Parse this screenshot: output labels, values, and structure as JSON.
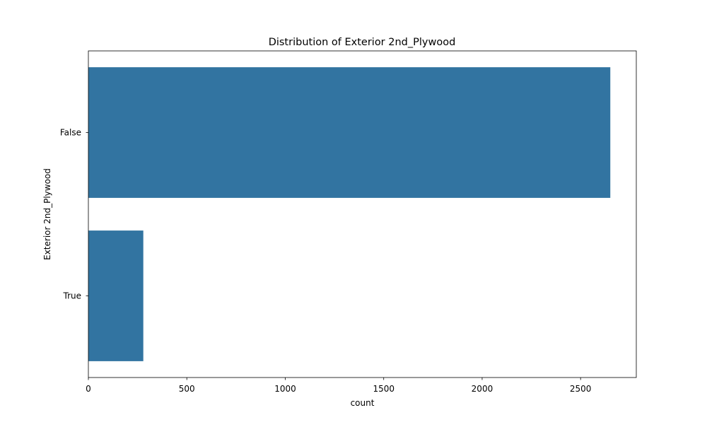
{
  "chart_data": {
    "type": "bar",
    "orientation": "horizontal",
    "title": "Distribution of Exterior 2nd_Plywood",
    "xlabel": "count",
    "ylabel": "Exterior 2nd_Plywood",
    "categories": [
      "False",
      "True"
    ],
    "values": [
      2651,
      279
    ],
    "xlim": [
      0,
      2783
    ],
    "xticks": [
      0,
      500,
      1000,
      1500,
      2000,
      2500
    ],
    "grid": false,
    "legend": "none",
    "bar_color": "#3274a1"
  }
}
